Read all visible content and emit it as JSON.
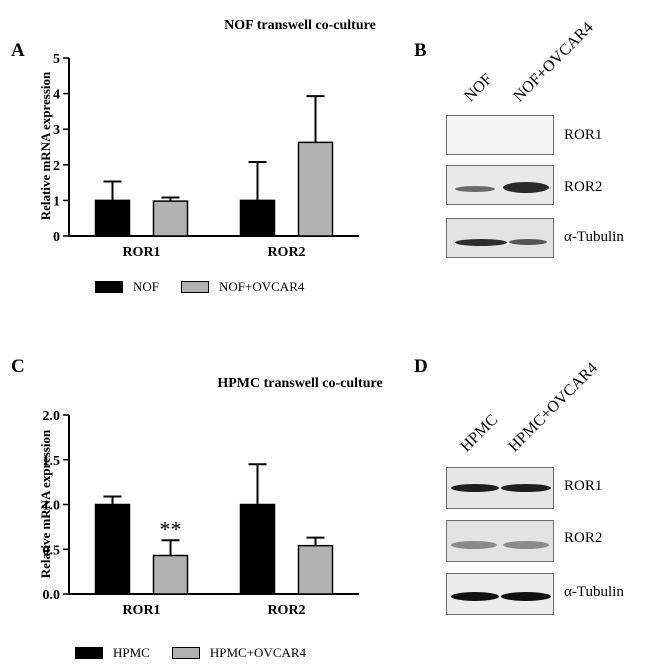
{
  "panels": {
    "A": {
      "letter": "A",
      "title": "NOF transwell co-culture",
      "ylabel": "Relative mRNA expression",
      "legend": [
        "NOF",
        "NOF+OVCAR4"
      ],
      "series_colors": [
        "#000000",
        "#b2b2b2"
      ]
    },
    "B": {
      "letter": "B",
      "lanes": [
        "NOF",
        "NOF+OVCAR4"
      ],
      "rows": [
        "ROR1",
        "ROR2",
        "α-Tubulin"
      ]
    },
    "C": {
      "letter": "C",
      "title": "HPMC transwell co-culture",
      "ylabel": "Relative mRNA expression",
      "legend": [
        "HPMC",
        "HPMC+OVCAR4"
      ],
      "annotation": "**",
      "series_colors": [
        "#000000",
        "#b2b2b2"
      ]
    },
    "D": {
      "letter": "D",
      "lanes": [
        "HPMC",
        "HPMC+OVCAR4"
      ],
      "rows": [
        "ROR1",
        "ROR2",
        "α-Tubulin"
      ]
    }
  },
  "chart_data": [
    {
      "type": "bar",
      "title": "NOF transwell co-culture",
      "xlabel": "",
      "ylabel": "Relative mRNA expression",
      "categories": [
        "ROR1",
        "ROR2"
      ],
      "ylim": [
        0,
        5
      ],
      "yticks": [
        "0",
        "1",
        "2",
        "3",
        "4",
        "5"
      ],
      "series": [
        {
          "name": "NOF",
          "values": [
            1.0,
            1.0
          ],
          "errors": [
            0.53,
            1.08
          ]
        },
        {
          "name": "NOF+OVCAR4",
          "values": [
            0.98,
            2.63
          ],
          "errors": [
            0.1,
            1.3
          ]
        }
      ],
      "legend": "bottom",
      "grid": false
    },
    {
      "type": "bar",
      "title": "HPMC transwell co-culture",
      "xlabel": "",
      "ylabel": "Relative mRNA expression",
      "categories": [
        "ROR1",
        "ROR2"
      ],
      "ylim": [
        0,
        2.0
      ],
      "yticks": [
        "0.0",
        "0.5",
        "1.0",
        "1.5",
        "2.0"
      ],
      "series": [
        {
          "name": "HPMC",
          "values": [
            1.0,
            1.0
          ],
          "errors": [
            0.09,
            0.45
          ]
        },
        {
          "name": "HPMC+OVCAR4",
          "values": [
            0.43,
            0.54
          ],
          "errors": [
            0.17,
            0.09
          ]
        }
      ],
      "legend": "bottom",
      "grid": false
    }
  ]
}
